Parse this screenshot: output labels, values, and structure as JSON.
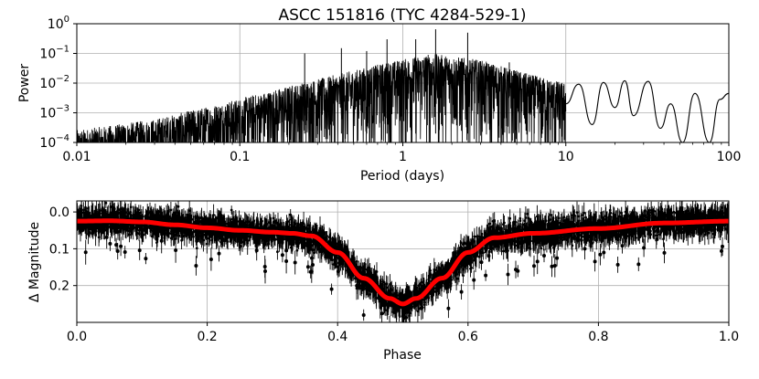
{
  "chart_data": [
    {
      "type": "line",
      "name": "periodogram",
      "title": "ASCC 151816  (TYC 4284-529-1)",
      "xlabel": "Period (days)",
      "ylabel": "Power",
      "xscale": "log",
      "yscale": "log",
      "xlim": [
        0.01,
        100
      ],
      "ylim": [
        0.0001,
        1
      ],
      "grid": true,
      "xticks": [
        {
          "value": 0.01,
          "label": "0.01"
        },
        {
          "value": 0.1,
          "label": "0.1"
        },
        {
          "value": 1,
          "label": "1"
        },
        {
          "value": 10,
          "label": "10"
        },
        {
          "value": 100,
          "label": "100"
        }
      ],
      "yticks": [
        {
          "value": 0.0001,
          "base": "10",
          "exp": "−4"
        },
        {
          "value": 0.001,
          "base": "10",
          "exp": "−3"
        },
        {
          "value": 0.01,
          "base": "10",
          "exp": "−2"
        },
        {
          "value": 0.1,
          "base": "10",
          "exp": "−1"
        },
        {
          "value": 1,
          "base": "10",
          "exp": "0"
        }
      ],
      "envelope": [
        {
          "period": 0.01,
          "power": 0.00025
        },
        {
          "period": 0.03,
          "power": 0.0006
        },
        {
          "period": 0.1,
          "power": 0.003
        },
        {
          "period": 0.2,
          "power": 0.008
        },
        {
          "period": 0.4,
          "power": 0.02
        },
        {
          "period": 0.8,
          "power": 0.05
        },
        {
          "period": 1.5,
          "power": 0.1
        },
        {
          "period": 3.0,
          "power": 0.06
        },
        {
          "period": 6.0,
          "power": 0.02
        },
        {
          "period": 10,
          "power": 0.01
        }
      ],
      "peaks": [
        {
          "period": 0.25,
          "power": 0.1
        },
        {
          "period": 0.42,
          "power": 0.15
        },
        {
          "period": 0.6,
          "power": 0.12
        },
        {
          "period": 0.8,
          "power": 0.3
        },
        {
          "period": 1.2,
          "power": 0.3
        },
        {
          "period": 1.59,
          "power": 0.65
        },
        {
          "period": 2.5,
          "power": 0.5
        },
        {
          "period": 4.5,
          "power": 0.05
        },
        {
          "period": 6.4,
          "power": 0.012
        }
      ],
      "longperiod": [
        {
          "period": 10,
          "power": 0.002
        },
        {
          "period": 12,
          "power": 0.0092
        },
        {
          "period": 14.5,
          "power": 0.0004
        },
        {
          "period": 17,
          "power": 0.0105
        },
        {
          "period": 20,
          "power": 0.0015
        },
        {
          "period": 23,
          "power": 0.012
        },
        {
          "period": 26,
          "power": 0.0008
        },
        {
          "period": 32,
          "power": 0.0115
        },
        {
          "period": 38,
          "power": 0.0003
        },
        {
          "period": 44,
          "power": 0.002
        },
        {
          "period": 52,
          "power": 0.0001
        },
        {
          "period": 62,
          "power": 0.0045
        },
        {
          "period": 76,
          "power": 0.0001
        },
        {
          "period": 88,
          "power": 0.0028
        },
        {
          "period": 100,
          "power": 0.0045
        }
      ]
    },
    {
      "type": "scatter",
      "name": "phased-light-curve",
      "xlabel": "Phase",
      "ylabel": "Δ Magnitude",
      "xlim": [
        0.0,
        1.0
      ],
      "ylim": [
        0.3,
        -0.03
      ],
      "inverted_y": true,
      "grid": true,
      "xticks": [
        {
          "value": 0.0,
          "label": "0.0"
        },
        {
          "value": 0.2,
          "label": "0.2"
        },
        {
          "value": 0.4,
          "label": "0.4"
        },
        {
          "value": 0.6,
          "label": "0.6"
        },
        {
          "value": 0.8,
          "label": "0.8"
        },
        {
          "value": 1.0,
          "label": "1.0"
        }
      ],
      "yticks": [
        {
          "value": 0.0,
          "label": "0.0"
        },
        {
          "value": 0.1,
          "label": "0.1"
        },
        {
          "value": 0.2,
          "label": "0.2"
        }
      ],
      "points_color": "#000000",
      "model_color": "#ff0000",
      "model": {
        "phase": [
          0.0,
          0.05,
          0.1,
          0.15,
          0.2,
          0.25,
          0.3,
          0.33,
          0.36,
          0.4,
          0.44,
          0.48,
          0.5,
          0.52,
          0.56,
          0.6,
          0.64,
          0.7,
          0.8,
          0.9,
          1.0
        ],
        "dmag": [
          0.025,
          0.024,
          0.027,
          0.035,
          0.043,
          0.05,
          0.055,
          0.058,
          0.065,
          0.11,
          0.18,
          0.235,
          0.25,
          0.235,
          0.18,
          0.11,
          0.07,
          0.058,
          0.045,
          0.03,
          0.025
        ]
      }
    }
  ]
}
